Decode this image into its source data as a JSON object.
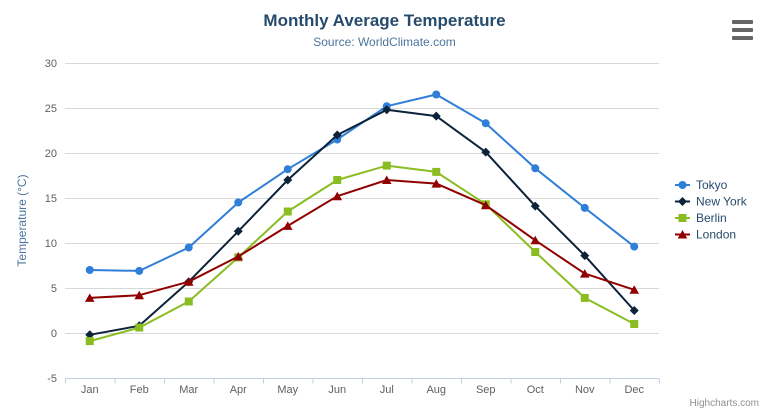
{
  "header": {
    "title": "Monthly Average Temperature",
    "subtitle": "Source: WorldClimate.com"
  },
  "credits": "Highcharts.com",
  "export_menu_icon": "hamburger-icon",
  "chart_data": {
    "type": "line",
    "title": "Monthly Average Temperature",
    "subtitle": "Source: WorldClimate.com",
    "categories": [
      "Jan",
      "Feb",
      "Mar",
      "Apr",
      "May",
      "Jun",
      "Jul",
      "Aug",
      "Sep",
      "Oct",
      "Nov",
      "Dec"
    ],
    "series": [
      {
        "name": "Tokyo",
        "color": "#2f7ed8",
        "marker": "circle",
        "values": [
          7.0,
          6.9,
          9.5,
          14.5,
          18.2,
          21.5,
          25.2,
          26.5,
          23.3,
          18.3,
          13.9,
          9.6
        ]
      },
      {
        "name": "New York",
        "color": "#0d233a",
        "marker": "diamond",
        "values": [
          -0.2,
          0.8,
          5.7,
          11.3,
          17.0,
          22.0,
          24.8,
          24.1,
          20.1,
          14.1,
          8.6,
          2.5
        ]
      },
      {
        "name": "Berlin",
        "color": "#8bbc21",
        "marker": "square",
        "values": [
          -0.9,
          0.6,
          3.5,
          8.4,
          13.5,
          17.0,
          18.6,
          17.9,
          14.3,
          9.0,
          3.9,
          1.0
        ]
      },
      {
        "name": "London",
        "color": "#910000",
        "marker": "triangle",
        "values": [
          3.9,
          4.2,
          5.7,
          8.5,
          11.9,
          15.2,
          17.0,
          16.6,
          14.2,
          10.3,
          6.6,
          4.8
        ]
      }
    ],
    "xlabel": "",
    "ylabel": "Temperature (°C)",
    "ylim": [
      -5,
      30
    ],
    "ytick_step": 5,
    "yticks": [
      -5,
      0,
      5,
      10,
      15,
      20,
      25,
      30
    ],
    "grid": true,
    "legend_position": "right"
  },
  "styles": {
    "title_color": "#274b6d",
    "subtitle_color": "#4d759e",
    "axis_title_color": "#4d759e",
    "tick_label_color": "#606060",
    "gridline_color": "#d8d8d8",
    "axis_line_color": "#c0d0e0",
    "legend_text_color": "#274b6d",
    "credits_color": "#909090",
    "menu_icon_color": "#666666",
    "background_color": "#ffffff"
  }
}
